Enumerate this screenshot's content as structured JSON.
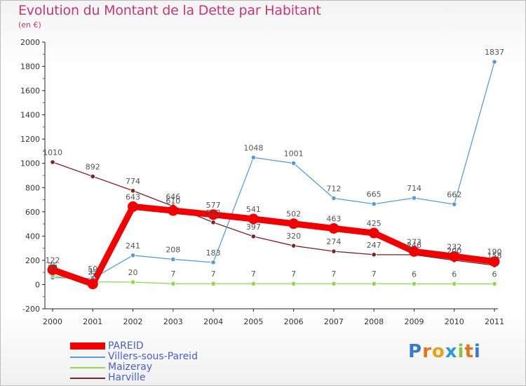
{
  "title": "Evolution du Montant de la Dette par Habitant",
  "subtitle": "(en €)",
  "logo_text": "Proxiti",
  "chart_data": {
    "type": "line",
    "x": [
      "2000",
      "2001",
      "2002",
      "2003",
      "2004",
      "2005",
      "2006",
      "2007",
      "2008",
      "2009",
      "2010",
      "2011"
    ],
    "ylim": [
      -200,
      2000
    ],
    "yticks": [
      -200,
      0,
      200,
      400,
      600,
      800,
      1000,
      1200,
      1400,
      1600,
      1800,
      2000
    ],
    "grid": false,
    "legend_position": "bottom-left",
    "series": [
      {
        "name": "Harville",
        "color": "#7a2428",
        "values": [
          1010,
          892,
          774,
          646,
          513,
          397,
          320,
          274,
          247,
          246,
          200,
          158
        ],
        "labels": [
          "1010",
          "892",
          "774",
          "646",
          "513",
          "397",
          "320",
          "274",
          "247",
          "246",
          "200",
          "158"
        ],
        "style": "thin"
      },
      {
        "name": "Villers-sous-Pareid",
        "color": "#5b9bd3",
        "values": [
          57,
          50,
          241,
          208,
          183,
          1048,
          1001,
          712,
          665,
          714,
          662,
          1837
        ],
        "labels": [
          "57",
          "50",
          "241",
          "208",
          "183",
          "1048",
          "1001",
          "712",
          "665",
          "714",
          "662",
          "1837"
        ],
        "style": "thin"
      },
      {
        "name": "Maizeray",
        "color": "#8fd84a",
        "values": [
          75,
          22,
          20,
          7,
          7,
          7,
          7,
          7,
          7,
          6,
          6,
          6
        ],
        "labels": [
          "75",
          "22",
          "20",
          "7",
          "7",
          "7",
          "7",
          "7",
          "7",
          "6",
          "6",
          "6"
        ],
        "style": "thin"
      },
      {
        "name": "PAREID",
        "color": "#f00000",
        "values": [
          122,
          5,
          643,
          610,
          577,
          541,
          502,
          463,
          425,
          273,
          232,
          190
        ],
        "labels": [
          "122",
          "5",
          "643",
          "610",
          "577",
          "541",
          "502",
          "463",
          "425",
          "273",
          "232",
          "190"
        ],
        "style": "thick"
      }
    ],
    "legend": [
      {
        "name": "PAREID",
        "color": "#f00000",
        "style": "thick"
      },
      {
        "name": "Villers-sous-Pareid",
        "color": "#5b9bd3",
        "style": "thin"
      },
      {
        "name": "Maizeray",
        "color": "#8fd84a",
        "style": "thin"
      },
      {
        "name": "Harville",
        "color": "#7a2428",
        "style": "thin"
      }
    ]
  }
}
